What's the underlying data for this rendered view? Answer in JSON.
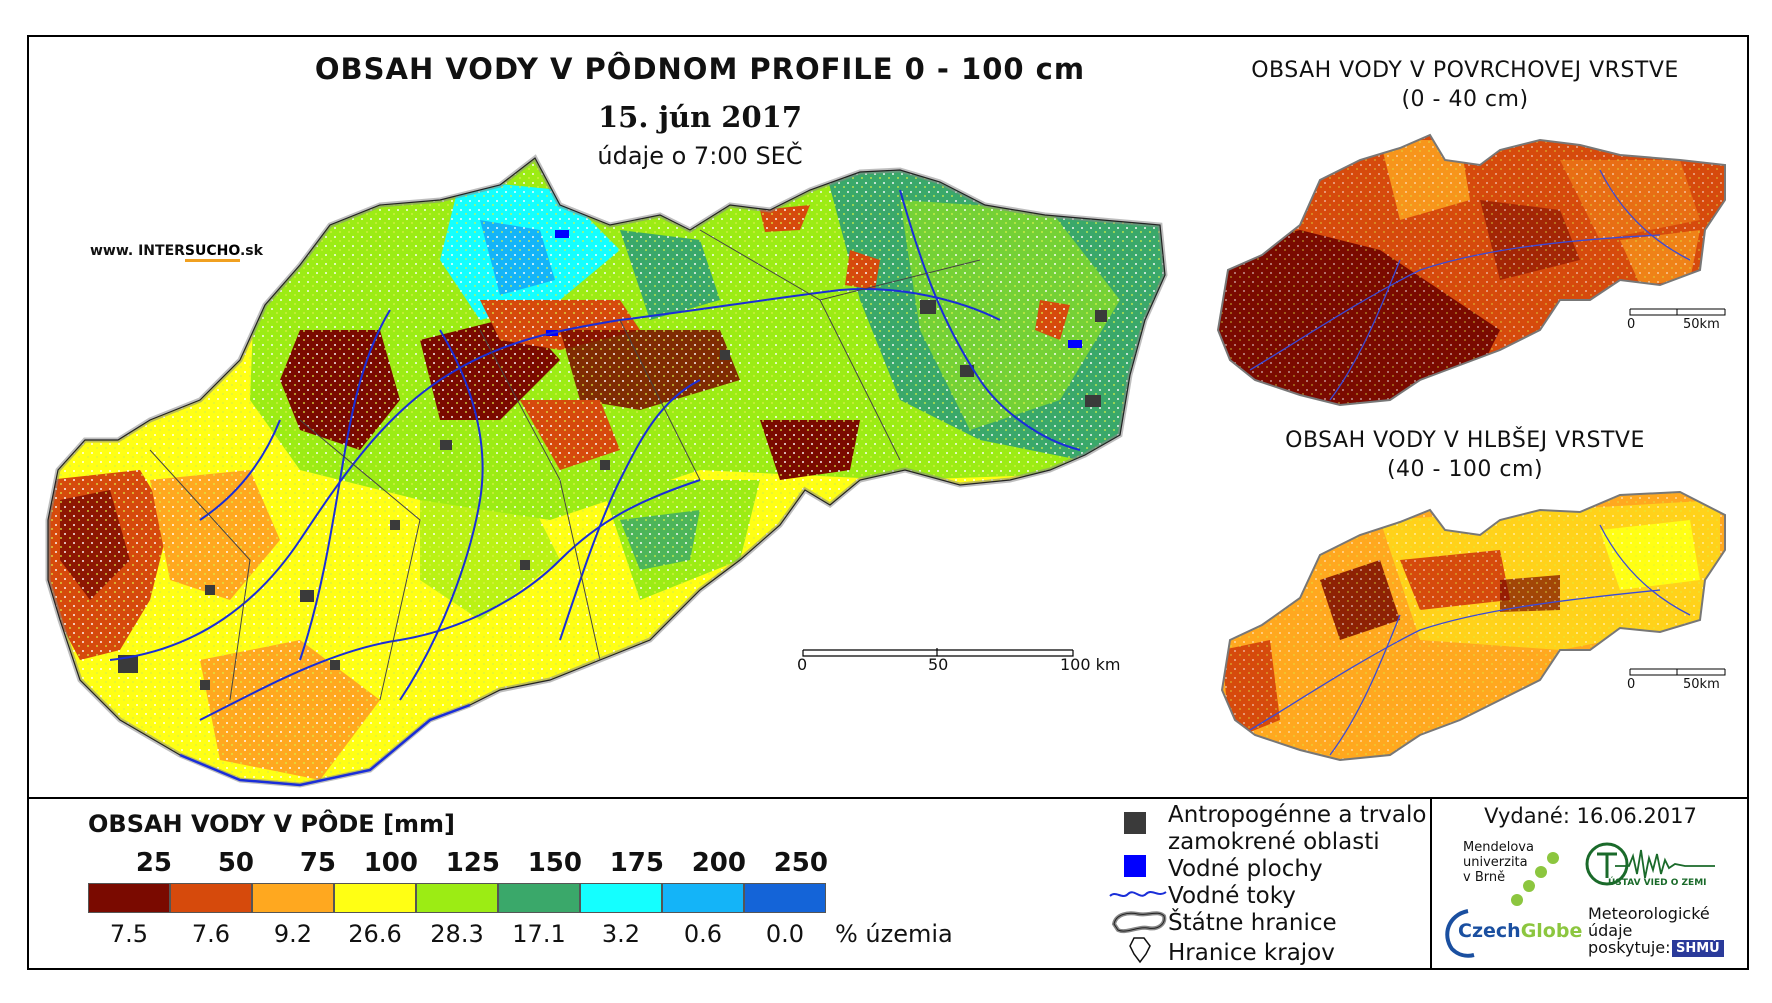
{
  "main_map": {
    "title": "OBSAH VODY V PÔDNOM PROFILE 0 - 100 cm",
    "date": "15. jún 2017",
    "time_note": "údaje o 7:00 SEČ",
    "scale_labels": [
      "0",
      "50",
      "100 km"
    ]
  },
  "website": {
    "prefix": "www. INTER",
    "accent": "SUCHO",
    "suffix": ".sk"
  },
  "inset_surface": {
    "title_line1": "OBSAH VODY V POVRCHOVEJ VRSTVE",
    "title_line2": "(0 - 40 cm)",
    "scale_labels": [
      "0",
      "50km"
    ]
  },
  "inset_deep": {
    "title_line1": "OBSAH VODY V HLBŠEJ VRSTVE",
    "title_line2": "(40 - 100 cm)",
    "scale_labels": [
      "0",
      "50km"
    ]
  },
  "legend": {
    "title": "OBSAH VODY V PÔDE [mm]",
    "classes": [
      {
        "upper": "25",
        "color": "#7a0a00",
        "pct": "7.5"
      },
      {
        "upper": "50",
        "color": "#d64a0c",
        "pct": "7.6"
      },
      {
        "upper": "75",
        "color": "#ffa81f",
        "pct": "9.2"
      },
      {
        "upper": "100",
        "color": "#ffff14",
        "pct": "26.6"
      },
      {
        "upper": "125",
        "color": "#9cec14",
        "pct": "28.3"
      },
      {
        "upper": "150",
        "color": "#3aa86a",
        "pct": "17.1"
      },
      {
        "upper": "175",
        "color": "#14ffff",
        "pct": "3.2"
      },
      {
        "upper": "200",
        "color": "#14b4f8",
        "pct": "0.6"
      },
      {
        "upper": "250",
        "color": "#1464d8",
        "pct": "0.0"
      }
    ],
    "pct_unit": "% územia"
  },
  "symbols": {
    "urban": {
      "line1": "Antropogénne a trvalo",
      "line2": "zamokrené oblasti",
      "color": "#3a3a3a"
    },
    "water_bodies": {
      "label": "Vodné plochy",
      "color": "#0000ff"
    },
    "rivers": {
      "label": "Vodné toky",
      "color": "#1a2ed8"
    },
    "state_border": {
      "label": "Štátne hranice"
    },
    "regions": {
      "label": "Hranice krajov"
    }
  },
  "issued": "Vydané: 16.06.2017",
  "logos": {
    "mendel": [
      "Mendelova",
      "univerzita",
      "v Brně"
    ],
    "czechglobe": {
      "part1": "Czech",
      "part2": "Globe"
    },
    "ustav": "ÚSTAV VIED O ZEMI",
    "meteo": [
      "Meteorologické",
      "údaje",
      "poskytuje:"
    ],
    "shmu": "SHMÚ"
  }
}
